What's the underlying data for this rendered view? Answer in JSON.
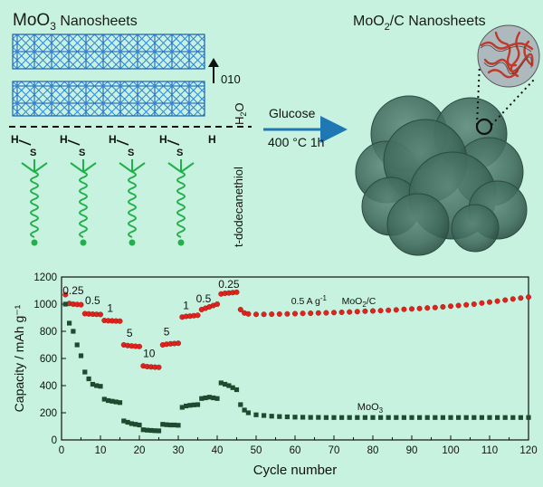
{
  "scheme": {
    "left_title": {
      "main": "MoO",
      "sub": "3",
      "rest": " Nanosheets"
    },
    "right_title": {
      "main": "MoO",
      "sub": "2",
      "rest": "/C Nanosheets"
    },
    "direction_label": "010",
    "water_label": {
      "main": "H",
      "sub": "2",
      "rest": "O"
    },
    "thiol_label": "t-dodecanethiol",
    "h_atom": "H",
    "s_atom": "S",
    "arrow_top": "Glucose",
    "arrow_bottom": "400 °C 1h",
    "colors": {
      "background": "#c8f2e0",
      "crystal": "#2a7fd6",
      "chain": "#21b04a",
      "arrow": "#1f77b4",
      "sphere": "#3f6f60"
    }
  },
  "chart_data": {
    "type": "scatter",
    "xlabel": "Cycle number",
    "ylabel": "Capacity / mAh g⁻¹",
    "xlim": [
      0,
      120
    ],
    "ylim": [
      0,
      1200
    ],
    "xticks": [
      0,
      10,
      20,
      30,
      40,
      50,
      60,
      70,
      80,
      90,
      100,
      110,
      120
    ],
    "yticks": [
      0,
      200,
      400,
      600,
      800,
      1000,
      1200
    ],
    "series": [
      {
        "name": "MoO2/C",
        "color": "#e3231b",
        "x": [
          1,
          2,
          3,
          4,
          5,
          6,
          7,
          8,
          9,
          10,
          11,
          12,
          13,
          14,
          15,
          16,
          17,
          18,
          19,
          20,
          21,
          22,
          23,
          24,
          25,
          26,
          27,
          28,
          29,
          30,
          31,
          32,
          33,
          34,
          35,
          36,
          37,
          38,
          39,
          40,
          41,
          42,
          43,
          44,
          45,
          46,
          47,
          48,
          50,
          52,
          54,
          56,
          58,
          60,
          62,
          64,
          66,
          68,
          70,
          72,
          74,
          76,
          78,
          80,
          82,
          84,
          86,
          88,
          90,
          92,
          94,
          96,
          98,
          100,
          102,
          104,
          106,
          108,
          110,
          112,
          114,
          116,
          118,
          120
        ],
        "y": [
          1070,
          1005,
          1000,
          998,
          996,
          930,
          928,
          926,
          925,
          924,
          880,
          878,
          877,
          876,
          875,
          700,
          695,
          692,
          690,
          688,
          545,
          540,
          538,
          536,
          535,
          700,
          705,
          708,
          710,
          712,
          905,
          910,
          912,
          915,
          918,
          960,
          970,
          980,
          990,
          1000,
          1075,
          1080,
          1082,
          1085,
          1088,
          960,
          935,
          928,
          925,
          925,
          926,
          927,
          928,
          930,
          932,
          933,
          935,
          936,
          938,
          940,
          942,
          945,
          948,
          950,
          952,
          955,
          958,
          962,
          965,
          968,
          972,
          975,
          980,
          985,
          990,
          995,
          1000,
          1008,
          1015,
          1022,
          1030,
          1038,
          1045,
          1052
        ]
      },
      {
        "name": "MoO3",
        "color": "#1f4a2f",
        "x": [
          1,
          2,
          3,
          4,
          5,
          6,
          7,
          8,
          9,
          10,
          11,
          12,
          13,
          14,
          15,
          16,
          17,
          18,
          19,
          20,
          21,
          22,
          23,
          24,
          25,
          26,
          27,
          28,
          29,
          30,
          31,
          32,
          33,
          34,
          35,
          36,
          37,
          38,
          39,
          40,
          41,
          42,
          43,
          44,
          45,
          46,
          47,
          48,
          50,
          52,
          54,
          56,
          58,
          60,
          62,
          64,
          66,
          68,
          70,
          72,
          74,
          76,
          78,
          80,
          82,
          84,
          86,
          88,
          90,
          92,
          94,
          96,
          98,
          100,
          102,
          104,
          106,
          108,
          110,
          112,
          114,
          116,
          118,
          120
        ],
        "y": [
          1000,
          860,
          800,
          700,
          620,
          500,
          450,
          410,
          400,
          395,
          300,
          290,
          285,
          280,
          275,
          140,
          130,
          120,
          115,
          110,
          75,
          72,
          70,
          68,
          67,
          115,
          112,
          110,
          110,
          108,
          240,
          250,
          255,
          258,
          260,
          305,
          310,
          315,
          310,
          305,
          420,
          410,
          400,
          385,
          370,
          260,
          220,
          200,
          185,
          180,
          175,
          172,
          170,
          168,
          167,
          166,
          166,
          165,
          165,
          165,
          165,
          165,
          165,
          165,
          165,
          165,
          165,
          165,
          165,
          165,
          165,
          165,
          165,
          165,
          165,
          165,
          165,
          165,
          165,
          165,
          165,
          165,
          165,
          165
        ]
      }
    ],
    "annotations": [
      {
        "text": "0.25",
        "x": 3,
        "y": 1075
      },
      {
        "text": "0.5",
        "x": 8,
        "y": 1000
      },
      {
        "text": "1",
        "x": 12.5,
        "y": 945
      },
      {
        "text": "5",
        "x": 17.5,
        "y": 760
      },
      {
        "text": "10",
        "x": 22.5,
        "y": 610
      },
      {
        "text": "5",
        "x": 27,
        "y": 770
      },
      {
        "text": "1",
        "x": 32,
        "y": 965
      },
      {
        "text": "0.5",
        "x": 36.5,
        "y": 1015
      },
      {
        "text": "0.25",
        "x": 43,
        "y": 1120
      }
    ],
    "rate_label": {
      "prefix": "0.5 A g",
      "sup": "-1",
      "x": 59,
      "y": 1000
    },
    "label_moo2c": {
      "main": "MoO",
      "sub": "2",
      "rest": "/C",
      "x": 72,
      "y": 1000
    },
    "label_moo3": {
      "main": "MoO",
      "sub": "3",
      "x": 76,
      "y": 220
    }
  }
}
